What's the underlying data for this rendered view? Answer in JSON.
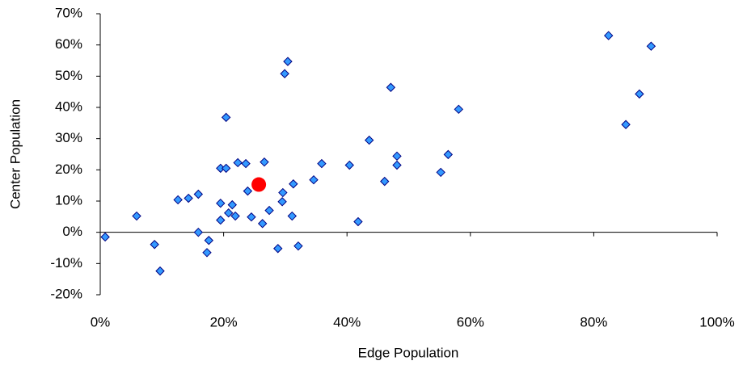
{
  "chart_data": {
    "type": "scatter",
    "x_label": "Edge Population",
    "y_label": "Center Population",
    "xlim": [
      0,
      100
    ],
    "ylim": [
      -20,
      70
    ],
    "xticks": [
      {
        "value": 0,
        "label": "0%"
      },
      {
        "value": 20,
        "label": "20%"
      },
      {
        "value": 40,
        "label": "40%"
      },
      {
        "value": 60,
        "label": "60%"
      },
      {
        "value": 80,
        "label": "80%"
      },
      {
        "value": 100,
        "label": "100%"
      }
    ],
    "yticks": [
      {
        "value": -20,
        "label": "-20%"
      },
      {
        "value": -10,
        "label": "-10%"
      },
      {
        "value": 0,
        "label": "0%"
      },
      {
        "value": 10,
        "label": "10%"
      },
      {
        "value": 20,
        "label": "20%"
      },
      {
        "value": 30,
        "label": "30%"
      },
      {
        "value": 40,
        "label": "40%"
      },
      {
        "value": 50,
        "label": "50%"
      },
      {
        "value": 60,
        "label": "60%"
      },
      {
        "value": 70,
        "label": "70%"
      }
    ],
    "series": [
      {
        "color": "#3399ff",
        "marker": "diamond",
        "x": [
          0.8,
          5.9,
          8.8,
          9.7,
          12.6,
          14.3,
          15.9,
          15.9,
          17.6,
          17.3,
          19.5,
          20.4,
          20.4,
          19.5,
          19.5,
          20.8,
          21.4,
          21.9,
          22.3,
          23.6,
          23.9,
          24.5,
          26.6,
          26.3,
          27.4,
          28.8,
          29.5,
          29.6,
          29.9,
          30.4,
          31.3,
          31.1,
          32.1,
          34.6,
          35.9,
          40.4,
          41.8,
          43.6,
          46.1,
          47.1,
          48.1,
          48.1,
          55.2,
          56.4,
          58.1,
          82.4,
          85.2,
          87.4,
          89.3
        ],
        "values": [
          -1.5,
          5.2,
          -3.9,
          -12.4,
          10.4,
          10.9,
          12.2,
          0,
          -2.6,
          -6.5,
          20.5,
          20.5,
          36.8,
          9.3,
          3.9,
          6.2,
          8.8,
          5.2,
          22.3,
          22.0,
          13.2,
          4.9,
          22.5,
          2.8,
          7.0,
          -5.2,
          9.8,
          12.7,
          50.8,
          54.7,
          15.5,
          5.2,
          -4.4,
          16.8,
          22.0,
          21.5,
          3.4,
          29.5,
          16.3,
          46.4,
          24.4,
          21.5,
          19.2,
          24.9,
          39.4,
          63.0,
          34.5,
          44.3,
          59.6
        ]
      },
      {
        "color": "#ff0000",
        "marker": "circle",
        "x": [
          25.7
        ],
        "values": [
          15.3
        ]
      }
    ]
  }
}
